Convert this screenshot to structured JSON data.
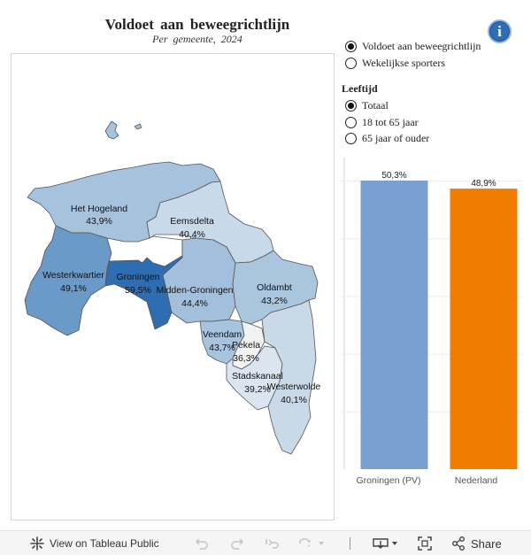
{
  "header": {
    "title": "Voldoet aan beweegrichtlijn",
    "subtitle": "Per gemeente, 2024"
  },
  "measure_options": [
    {
      "label": "Voldoet aan beweegrichtlijn",
      "selected": true
    },
    {
      "label": "Wekelijkse sporters",
      "selected": false
    }
  ],
  "age_filter": {
    "title": "Leeftijd",
    "options": [
      {
        "label": "Totaal",
        "selected": true
      },
      {
        "label": "18 tot 65 jaar",
        "selected": false
      },
      {
        "label": "65 jaar of ouder",
        "selected": false
      }
    ]
  },
  "map": {
    "municipalities": [
      {
        "name": "Het Hogeland",
        "value": "43,9%",
        "color": "#a6c3dd"
      },
      {
        "name": "Eemsdelta",
        "value": "40,4%",
        "color": "#c8d9ea"
      },
      {
        "name": "Westerkwartier",
        "value": "49,1%",
        "color": "#6b9ac9"
      },
      {
        "name": "Groningen",
        "value": "59,5%",
        "color": "#2f6db2"
      },
      {
        "name": "Midden-Groningen",
        "value": "44,4%",
        "color": "#a2bfdc"
      },
      {
        "name": "Oldambt",
        "value": "43,2%",
        "color": "#aac6df"
      },
      {
        "name": "Veendam",
        "value": "43,7%",
        "color": "#a7c4de"
      },
      {
        "name": "Pekela",
        "value": "36,3%",
        "color": "#f2f2f2"
      },
      {
        "name": "Stadskanaal",
        "value": "39,2%",
        "color": "#dbe5ef"
      },
      {
        "name": "Westerwolde",
        "value": "40,1%",
        "color": "#cad9e8"
      }
    ]
  },
  "chart_data": {
    "type": "bar",
    "categories": [
      "Groningen (PV)",
      "Nederland"
    ],
    "values": [
      50.3,
      48.9
    ],
    "value_labels": [
      "50,3%",
      "48,9%"
    ],
    "colors": [
      "#7aa0d2",
      "#f07d00"
    ],
    "ylim": [
      0,
      50.3
    ],
    "grid": true
  },
  "toolbar": {
    "view_label": "View on Tableau Public",
    "share_label": "Share"
  },
  "icons": {
    "info": "i"
  }
}
